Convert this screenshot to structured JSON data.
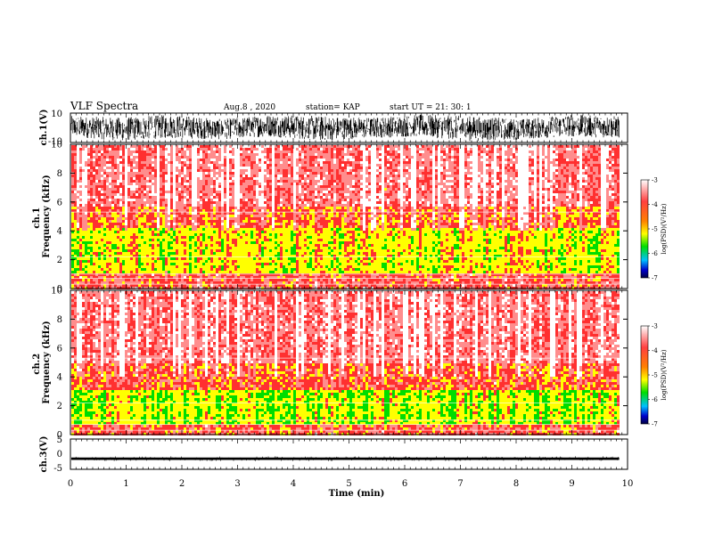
{
  "header": {
    "title": "VLF Spectra",
    "date": "Aug.8 , 2020",
    "station": "station= KAP",
    "start": "start UT = 21: 30: 1"
  },
  "colors": {
    "spectrum": [
      "#ffffff",
      "#ff3030",
      "#ffff00",
      "#00dd00",
      "#0000cc"
    ],
    "waveform": "#000000"
  },
  "chart_data": [
    {
      "type": "line",
      "name": "ch1-waveform",
      "ylabel": "ch.1(V)",
      "ylim": [
        -10,
        10
      ],
      "y_ticks": [
        "10",
        "-10"
      ],
      "xlim": [
        0,
        10
      ],
      "x_end": 9.85,
      "envelope_max": [
        8,
        7,
        9,
        6,
        9,
        8,
        7,
        9,
        8,
        6,
        9,
        8
      ],
      "envelope_min": [
        -6,
        -9,
        -7,
        -8,
        -6,
        -9,
        -7,
        -6,
        -9,
        -8,
        -6,
        -7
      ]
    },
    {
      "type": "heatmap",
      "name": "ch1-spectrogram",
      "ylabel": "ch.1\nFrequency (kHz)",
      "ylim": [
        0,
        10
      ],
      "y_ticks": [
        "0",
        "2",
        "4",
        "6",
        "8",
        "10"
      ],
      "xlim": [
        0,
        10
      ],
      "x_end": 9.85,
      "colorbar": {
        "label": "log(PSD)(V²/Hz)",
        "range": [
          -7,
          -3
        ],
        "ticks": [
          "-3",
          "-4",
          "-5",
          "-6",
          "-7"
        ]
      }
    },
    {
      "type": "heatmap",
      "name": "ch2-spectrogram",
      "ylabel": "ch.2\nFrequency (kHz)",
      "ylim": [
        0,
        10
      ],
      "y_ticks": [
        "0",
        "2",
        "4",
        "6",
        "8",
        "10"
      ],
      "xlim": [
        0,
        10
      ],
      "x_end": 9.85,
      "colorbar": {
        "label": "log(PSD)(V²/Hz)",
        "range": [
          -7,
          -3
        ],
        "ticks": [
          "-3",
          "-4",
          "-5",
          "-6",
          "-7"
        ]
      }
    },
    {
      "type": "line",
      "name": "ch3-waveform",
      "ylabel": "ch.3(V)",
      "ylim": [
        -5,
        5
      ],
      "y_ticks": [
        "5",
        "0",
        "-5"
      ],
      "xlim": [
        0,
        10
      ],
      "x_end": 9.85,
      "level": -1.5,
      "band": 0.4
    }
  ],
  "x_axis": {
    "label": "Time (min)",
    "ticks": [
      "0",
      "1",
      "2",
      "3",
      "4",
      "5",
      "6",
      "7",
      "8",
      "9",
      "10"
    ]
  }
}
